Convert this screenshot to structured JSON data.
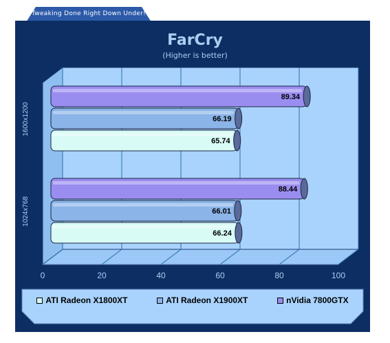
{
  "banner": {
    "text": "Tweaking Done Right Down Under!"
  },
  "chart_data": {
    "type": "bar",
    "orientation": "horizontal",
    "title": "FarCry",
    "subtitle": "(Higher is better)",
    "categories": [
      "1600x1200",
      "1024x768"
    ],
    "series": [
      {
        "name": "ATI Radeon X1800XT",
        "values": [
          65.74,
          66.24
        ],
        "color": "#d8fbf6"
      },
      {
        "name": "ATI Radeon X1900XT",
        "values": [
          66.19,
          66.01
        ],
        "color": "#8bb4e8"
      },
      {
        "name": "nVidia 7800GTX",
        "values": [
          89.34,
          88.44
        ],
        "color": "#9a8df0"
      }
    ],
    "xlim": [
      0,
      100
    ],
    "xticks": [
      0,
      20,
      40,
      60,
      80,
      100
    ],
    "grid": true,
    "legend": "bottom",
    "data_labels": true
  },
  "colors": {
    "panel": "#0c2e63",
    "plot_back": "#a9d3fd",
    "plot_floor": "#9bc8f6",
    "text": "#a9cff2"
  }
}
